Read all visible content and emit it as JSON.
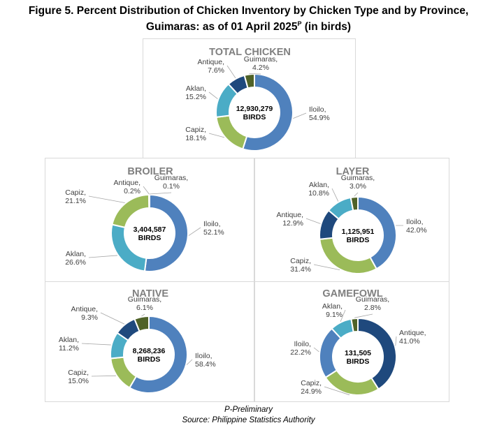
{
  "title": {
    "line1": "Figure 5. Percent Distribution of Chicken Inventory by Chicken Type and by Province,",
    "line2_main": "Guimaras: as of 01 April 2025",
    "line2_sup": "P",
    "line2_suffix": " (in birds)"
  },
  "footer": {
    "note": "P-Preliminary",
    "source": "Source: Philippine Statistics Authority"
  },
  "colors": {
    "Iloilo": "#4f81bd",
    "Capiz": "#9bbb59",
    "Aklan": "#4bacc6",
    "Antique": "#1f497d",
    "Guimaras": "#4f6228"
  },
  "chart_data": [
    {
      "type": "pie",
      "title": "TOTAL CHICKEN",
      "center_value": "12,930,279",
      "center_unit": "BIRDS",
      "slices": [
        {
          "label": "Iloilo",
          "value": 54.9,
          "display": "54.9%"
        },
        {
          "label": "Capiz",
          "value": 18.1,
          "display": "18.1%"
        },
        {
          "label": "Aklan",
          "value": 15.2,
          "display": "15.2%"
        },
        {
          "label": "Antique",
          "value": 7.6,
          "display": "7.6%"
        },
        {
          "label": "Guimaras",
          "value": 4.2,
          "display": "4.2%"
        }
      ]
    },
    {
      "type": "pie",
      "title": "BROILER",
      "center_value": "3,404,587",
      "center_unit": "BIRDS",
      "slices": [
        {
          "label": "Iloilo",
          "value": 52.1,
          "display": "52.1%"
        },
        {
          "label": "Aklan",
          "value": 26.6,
          "display": "26.6%"
        },
        {
          "label": "Capiz",
          "value": 21.1,
          "display": "21.1%"
        },
        {
          "label": "Antique",
          "value": 0.2,
          "display": "0.2%"
        },
        {
          "label": "Guimaras",
          "value": 0.1,
          "display": "0.1%"
        }
      ]
    },
    {
      "type": "pie",
      "title": "LAYER",
      "center_value": "1,125,951",
      "center_unit": "BIRDS",
      "slices": [
        {
          "label": "Iloilo",
          "value": 42.0,
          "display": "42.0%"
        },
        {
          "label": "Capiz",
          "value": 31.4,
          "display": "31.4%"
        },
        {
          "label": "Antique",
          "value": 12.9,
          "display": "12.9%"
        },
        {
          "label": "Aklan",
          "value": 10.8,
          "display": "10.8%"
        },
        {
          "label": "Guimaras",
          "value": 3.0,
          "display": "3.0%"
        }
      ]
    },
    {
      "type": "pie",
      "title": "NATIVE",
      "center_value": "8,268,236",
      "center_unit": "BIRDS",
      "slices": [
        {
          "label": "Iloilo",
          "value": 58.4,
          "display": "58.4%"
        },
        {
          "label": "Capiz",
          "value": 15.0,
          "display": "15.0%"
        },
        {
          "label": "Aklan",
          "value": 11.2,
          "display": "11.2%"
        },
        {
          "label": "Antique",
          "value": 9.3,
          "display": "9.3%"
        },
        {
          "label": "Guimaras",
          "value": 6.1,
          "display": "6.1%"
        }
      ]
    },
    {
      "type": "pie",
      "title": "GAMEFOWL",
      "center_value": "131,505",
      "center_unit": "BIRDS",
      "slices": [
        {
          "label": "Antique",
          "value": 41.0,
          "display": "41.0%"
        },
        {
          "label": "Capiz",
          "value": 24.9,
          "display": "24.9%"
        },
        {
          "label": "Iloilo",
          "value": 22.2,
          "display": "22.2%"
        },
        {
          "label": "Aklan",
          "value": 9.1,
          "display": "9.1%"
        },
        {
          "label": "Guimaras",
          "value": 2.8,
          "display": "2.8%"
        }
      ]
    }
  ]
}
